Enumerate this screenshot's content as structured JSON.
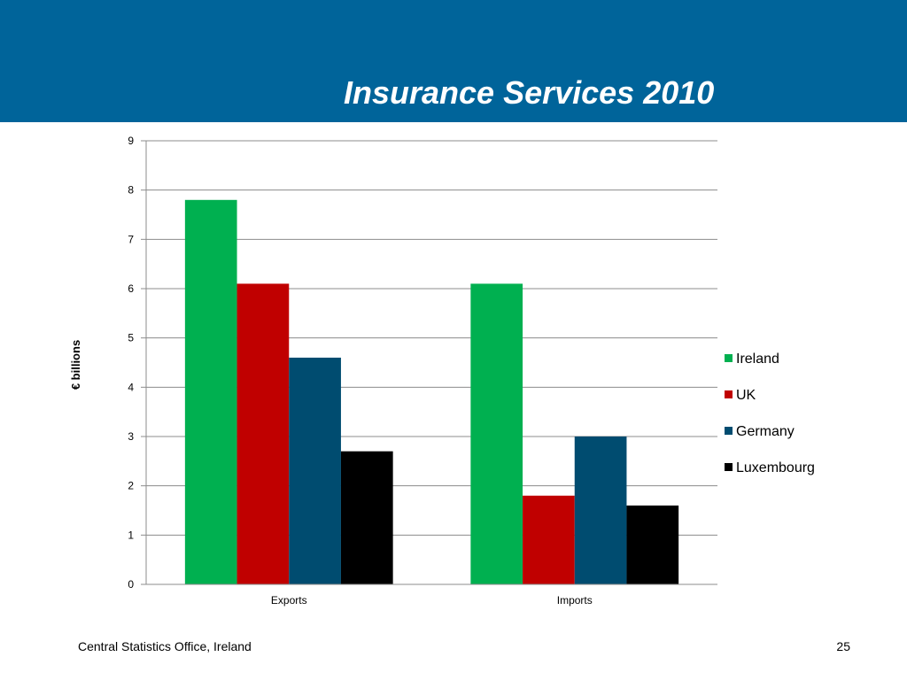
{
  "slide": {
    "title": "Insurance Services 2010",
    "footer_source": "Central Statistics Office, Ireland",
    "page_number": "25"
  },
  "colors": {
    "header_bg": "#00649a",
    "grid": "#8c8c8c",
    "axis": "#8c8c8c"
  },
  "chart_data": {
    "type": "bar",
    "title": "Insurance Services 2010",
    "xlabel": "",
    "ylabel": "€ billions",
    "categories": [
      "Exports",
      "Imports"
    ],
    "ylim": [
      0,
      9
    ],
    "yticks": [
      0,
      1,
      2,
      3,
      4,
      5,
      6,
      7,
      8,
      9
    ],
    "grid": true,
    "legend_position": "right",
    "series": [
      {
        "name": "Ireland",
        "color": "#00b050",
        "values": [
          7.8,
          6.1
        ]
      },
      {
        "name": "UK",
        "color": "#c00000",
        "values": [
          6.1,
          1.8
        ]
      },
      {
        "name": "Germany",
        "color": "#004c70",
        "values": [
          4.6,
          3.0
        ]
      },
      {
        "name": "Luxembourg",
        "color": "#000000",
        "values": [
          2.7,
          1.6
        ]
      }
    ]
  }
}
